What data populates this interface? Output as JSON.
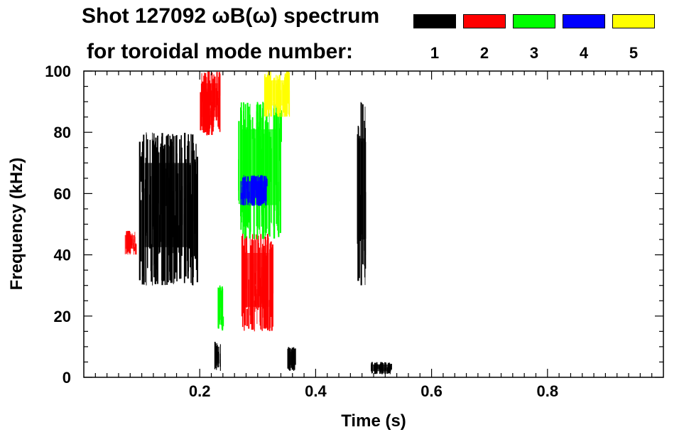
{
  "title_line1": "Shot 127092 ωB(ω) spectrum",
  "title_line2": "for toroidal mode number:",
  "legend": [
    {
      "label": "1",
      "color": "#000000"
    },
    {
      "label": "2",
      "color": "#ff0000"
    },
    {
      "label": "3",
      "color": "#00ff00"
    },
    {
      "label": "4",
      "color": "#0000ff"
    },
    {
      "label": "5",
      "color": "#ffff00"
    }
  ],
  "chart_data": {
    "type": "heatmap",
    "title": "Shot 127092 ωB(ω) spectrum",
    "xlabel": "Time (s)",
    "ylabel": "Frequency (kHz)",
    "xlim": [
      0.0,
      1.0
    ],
    "ylim": [
      0,
      100
    ],
    "xticks": [
      0.2,
      0.4,
      0.6,
      0.8
    ],
    "xtick_labels": [
      "0.2",
      "0.4",
      "0.6",
      "0.8"
    ],
    "yticks": [
      0,
      20,
      40,
      60,
      80,
      100
    ],
    "ytick_labels": [
      "0",
      "20",
      "40",
      "60",
      "80",
      "100"
    ],
    "grid": false,
    "legend_position": "top-right",
    "series": [
      {
        "mode": 1,
        "color": "#000000",
        "regions": [
          {
            "t": [
              0.095,
              0.195
            ],
            "f": [
              30,
              80
            ]
          },
          {
            "t": [
              0.225,
              0.235
            ],
            "f": [
              2,
              12
            ]
          },
          {
            "t": [
              0.35,
              0.365
            ],
            "f": [
              2,
              10
            ]
          },
          {
            "t": [
              0.47,
              0.485
            ],
            "f": [
              30,
              90
            ]
          },
          {
            "t": [
              0.495,
              0.53
            ],
            "f": [
              1,
              5
            ]
          }
        ]
      },
      {
        "mode": 2,
        "color": "#ff0000",
        "regions": [
          {
            "t": [
              0.205,
              0.22
            ],
            "f": [
              79,
              90
            ]
          },
          {
            "t": [
              0.2,
              0.235
            ],
            "f": [
              80,
              100
            ]
          },
          {
            "t": [
              0.27,
              0.325
            ],
            "f": [
              15,
              47
            ]
          },
          {
            "t": [
              0.07,
              0.09
            ],
            "f": [
              40,
              48
            ]
          }
        ]
      },
      {
        "mode": 3,
        "color": "#00ff00",
        "regions": [
          {
            "t": [
              0.265,
              0.34
            ],
            "f": [
              45,
              90
            ]
          },
          {
            "t": [
              0.23,
              0.24
            ],
            "f": [
              15,
              30
            ]
          }
        ]
      },
      {
        "mode": 4,
        "color": "#0000ff",
        "regions": [
          {
            "t": [
              0.27,
              0.315
            ],
            "f": [
              56,
              66
            ]
          }
        ]
      },
      {
        "mode": 5,
        "color": "#ffff00",
        "regions": [
          {
            "t": [
              0.31,
              0.355
            ],
            "f": [
              85,
              100
            ]
          }
        ]
      }
    ]
  }
}
